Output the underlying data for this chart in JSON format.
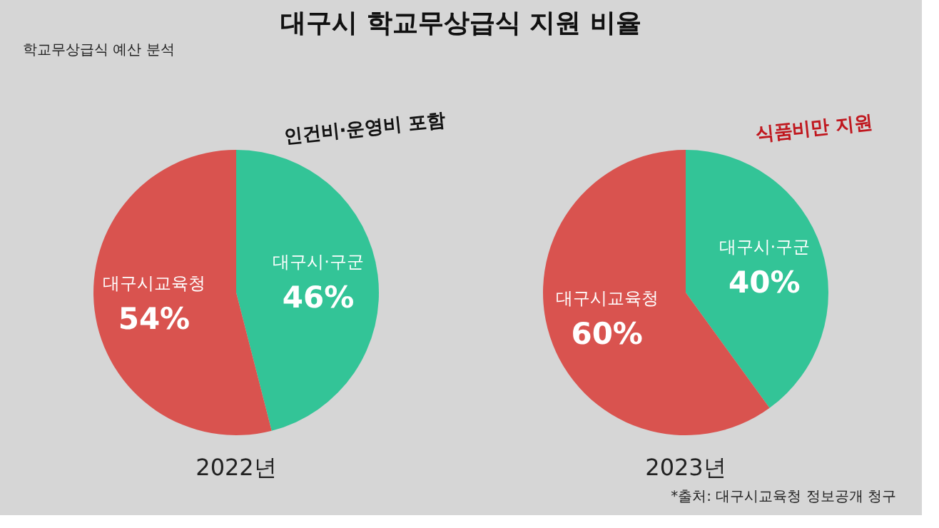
{
  "chart_data": [
    {
      "type": "pie",
      "title": "대구시 학교무상급식 지원 비율",
      "xlabel": "2022년",
      "categories": [
        "대구시·구군",
        "대구시교육청"
      ],
      "values": [
        46,
        54
      ],
      "colors": [
        "#33c497",
        "#d9534f"
      ],
      "value_labels": [
        "46%",
        "54%"
      ],
      "annotations": [
        "인건비·운영비 포함",
        "학교무상급식 예산 분석"
      ]
    },
    {
      "type": "pie",
      "xlabel": "2023년",
      "categories": [
        "대구시·구군",
        "대구시교육청"
      ],
      "values": [
        40,
        60
      ],
      "colors": [
        "#33c497",
        "#d9534f"
      ],
      "value_labels": [
        "40%",
        "60%"
      ],
      "annotations": [
        "식품비만 지원",
        "*출처: 대구시교육청 정보공개 청구"
      ]
    }
  ]
}
